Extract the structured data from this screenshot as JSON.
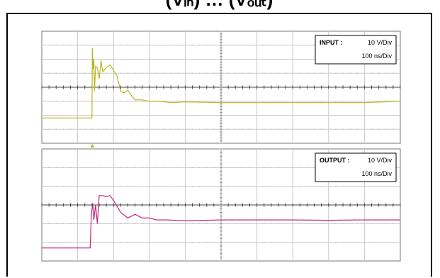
{
  "header": {
    "title": "(Vᵢₙ) … (Vₒᵤₜ)"
  },
  "chart_data": [
    {
      "type": "line",
      "panel": "input",
      "legend": {
        "label": "INPUT :",
        "vdiv": "10 V/Div",
        "tdiv": "100 ns/Div",
        "placement": "top-right"
      },
      "grid": true,
      "x_divisions": 10,
      "y_divisions": 8,
      "trigger_marker": true,
      "color": "#b7b820",
      "series": [
        {
          "x": [
            0,
            1.4,
            1.41,
            1.43,
            1.45,
            1.47,
            1.5,
            1.55,
            1.6,
            1.65,
            1.7,
            1.8,
            1.9,
            2.0,
            2.1,
            2.2,
            2.3,
            2.4,
            2.5,
            2.6,
            2.8,
            3.0,
            3.3,
            3.6,
            4.0,
            5.0,
            6.0,
            7.0,
            8.0,
            9.0,
            10.0
          ],
          "y": [
            -2.2,
            -2.2,
            2.8,
            1.3,
            2.0,
            -0.3,
            1.5,
            1.4,
            0.6,
            1.9,
            1.1,
            1.4,
            1.6,
            1.2,
            0.8,
            -0.3,
            -0.4,
            -0.2,
            -0.6,
            -0.9,
            -0.9,
            -1.0,
            -1.0,
            -1.1,
            -1.05,
            -1.1,
            -1.1,
            -1.1,
            -1.1,
            -1.1,
            -1.0
          ]
        }
      ]
    },
    {
      "type": "line",
      "panel": "output",
      "legend": {
        "label": "OUTPUT :",
        "vdiv": "10 V/Div",
        "tdiv": "100 ns/Div",
        "placement": "top-right"
      },
      "grid": true,
      "x_divisions": 10,
      "y_divisions": 6,
      "trigger_marker": false,
      "color": "#c2257a",
      "series": [
        {
          "x": [
            0,
            1.35,
            1.38,
            1.42,
            1.45,
            1.5,
            1.55,
            1.6,
            1.7,
            1.8,
            1.9,
            2.0,
            2.2,
            2.4,
            2.6,
            2.8,
            3.0,
            3.2,
            3.5,
            4.0,
            5.0,
            6.0,
            7.0,
            8.0,
            9.0,
            10.0
          ],
          "y": [
            -2.3,
            -2.3,
            -0.6,
            0.1,
            -0.8,
            0.0,
            -1.0,
            0.5,
            0.5,
            0.45,
            0.5,
            0.25,
            -0.4,
            -0.7,
            -0.5,
            -0.7,
            -0.7,
            -0.8,
            -0.8,
            -0.85,
            -0.8,
            -0.8,
            -0.8,
            -0.82,
            -0.8,
            -0.8
          ]
        }
      ]
    }
  ]
}
